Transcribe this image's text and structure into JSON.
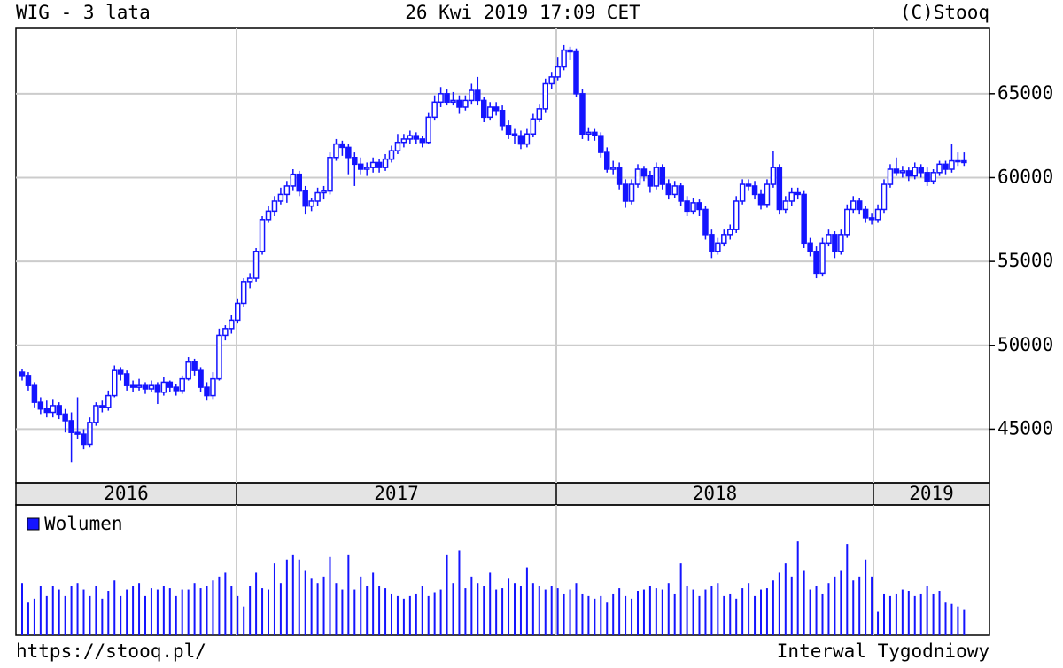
{
  "header": {
    "title": "WIG - 3 lata",
    "date": "26 Kwi 2019 17:09 CET",
    "copyright": "(C)Stooq"
  },
  "footer": {
    "url": "https://stooq.pl/",
    "interval": "Interwal Tygodniowy"
  },
  "chart_data": [
    {
      "type": "candlestick",
      "color": "#1414ff",
      "up_fill": "#ffffff",
      "grid": true,
      "x_labels": [
        "2016",
        "2017",
        "2018",
        "2019"
      ],
      "ylim": [
        41800,
        68900
      ],
      "yticks": [
        45000,
        50000,
        55000,
        60000,
        65000
      ],
      "candles": [
        [
          48400,
          48600,
          47900,
          48200
        ],
        [
          48200,
          48400,
          47300,
          47600
        ],
        [
          47600,
          47800,
          46300,
          46600
        ],
        [
          46600,
          46900,
          45900,
          46200
        ],
        [
          46200,
          46700,
          45700,
          46000
        ],
        [
          46000,
          46800,
          45700,
          46400
        ],
        [
          46400,
          46600,
          45600,
          45900
        ],
        [
          45900,
          46200,
          44800,
          45500
        ],
        [
          45500,
          46000,
          43000,
          44800
        ],
        [
          44800,
          46900,
          44400,
          44700
        ],
        [
          44700,
          45000,
          43800,
          44100
        ],
        [
          44100,
          45700,
          43900,
          45400
        ],
        [
          45400,
          46600,
          45200,
          46400
        ],
        [
          46400,
          46700,
          46000,
          46300
        ],
        [
          46300,
          47300,
          46100,
          47000
        ],
        [
          47000,
          48800,
          46900,
          48500
        ],
        [
          48500,
          48700,
          47900,
          48300
        ],
        [
          48300,
          48500,
          47300,
          47600
        ],
        [
          47600,
          47900,
          47200,
          47500
        ],
        [
          47500,
          48000,
          47300,
          47600
        ],
        [
          47600,
          47800,
          47100,
          47400
        ],
        [
          47400,
          47900,
          47200,
          47600
        ],
        [
          47600,
          47800,
          46500,
          47200
        ],
        [
          47200,
          48100,
          47000,
          47800
        ],
        [
          47800,
          47900,
          47200,
          47500
        ],
        [
          47500,
          47700,
          47000,
          47300
        ],
        [
          47300,
          48200,
          47100,
          48000
        ],
        [
          48000,
          49300,
          47900,
          49000
        ],
        [
          49000,
          49200,
          48200,
          48500
        ],
        [
          48500,
          48700,
          47200,
          47500
        ],
        [
          47500,
          47800,
          46700,
          47000
        ],
        [
          47000,
          48400,
          46800,
          48000
        ],
        [
          48000,
          51000,
          47900,
          50600
        ],
        [
          50600,
          51200,
          50300,
          51000
        ],
        [
          51000,
          51800,
          50700,
          51500
        ],
        [
          51500,
          52800,
          51300,
          52500
        ],
        [
          52500,
          54000,
          52300,
          53800
        ],
        [
          53800,
          54300,
          53400,
          54000
        ],
        [
          54000,
          55800,
          53800,
          55600
        ],
        [
          55600,
          57700,
          55400,
          57500
        ],
        [
          57500,
          58300,
          57300,
          58000
        ],
        [
          58000,
          58900,
          57700,
          58600
        ],
        [
          58600,
          59400,
          58400,
          59000
        ],
        [
          59000,
          59800,
          58500,
          59500
        ],
        [
          59500,
          60500,
          59200,
          60200
        ],
        [
          60200,
          60400,
          58900,
          59200
        ],
        [
          59200,
          59500,
          57800,
          58300
        ],
        [
          58300,
          58800,
          58000,
          58600
        ],
        [
          58600,
          59400,
          58300,
          59100
        ],
        [
          59100,
          59500,
          58700,
          59200
        ],
        [
          59200,
          61500,
          59000,
          61200
        ],
        [
          61200,
          62300,
          61000,
          62000
        ],
        [
          62000,
          62200,
          61300,
          61800
        ],
        [
          61800,
          62000,
          60200,
          61200
        ],
        [
          61200,
          61500,
          59500,
          60800
        ],
        [
          60800,
          61200,
          60200,
          60500
        ],
        [
          60500,
          60900,
          60100,
          60600
        ],
        [
          60600,
          61200,
          60300,
          60900
        ],
        [
          60900,
          61100,
          60300,
          60600
        ],
        [
          60600,
          61400,
          60400,
          61100
        ],
        [
          61100,
          61900,
          60900,
          61600
        ],
        [
          61600,
          62600,
          61400,
          62100
        ],
        [
          62100,
          62600,
          61800,
          62300
        ],
        [
          62300,
          62800,
          62000,
          62500
        ],
        [
          62500,
          62700,
          62000,
          62300
        ],
        [
          62300,
          62500,
          61800,
          62100
        ],
        [
          62100,
          63900,
          62000,
          63600
        ],
        [
          63600,
          64900,
          63400,
          64500
        ],
        [
          64500,
          65400,
          64200,
          65000
        ],
        [
          65000,
          65300,
          64300,
          64500
        ],
        [
          64500,
          65100,
          64300,
          64600
        ],
        [
          64600,
          64900,
          63800,
          64200
        ],
        [
          64200,
          64900,
          64000,
          64600
        ],
        [
          64600,
          65600,
          64400,
          65200
        ],
        [
          65200,
          66000,
          64300,
          64600
        ],
        [
          64600,
          64800,
          63300,
          63600
        ],
        [
          63600,
          64500,
          63400,
          64200
        ],
        [
          64200,
          64500,
          63700,
          64000
        ],
        [
          64000,
          64300,
          62800,
          63100
        ],
        [
          63100,
          63400,
          62300,
          62600
        ],
        [
          62600,
          62900,
          62000,
          62500
        ],
        [
          62500,
          62800,
          61700,
          62000
        ],
        [
          62000,
          62900,
          61800,
          62600
        ],
        [
          62600,
          63800,
          62400,
          63500
        ],
        [
          63500,
          64400,
          63300,
          64100
        ],
        [
          64100,
          65900,
          63900,
          65600
        ],
        [
          65600,
          66300,
          65300,
          66000
        ],
        [
          66000,
          67200,
          65800,
          66600
        ],
        [
          66600,
          67900,
          66400,
          67600
        ],
        [
          67600,
          67800,
          67000,
          67500
        ],
        [
          67500,
          67700,
          64800,
          65000
        ],
        [
          65000,
          65300,
          62300,
          62600
        ],
        [
          62600,
          63000,
          62200,
          62700
        ],
        [
          62700,
          62900,
          62200,
          62500
        ],
        [
          62500,
          62700,
          61200,
          61500
        ],
        [
          61500,
          61800,
          60300,
          60500
        ],
        [
          60500,
          61000,
          60200,
          60600
        ],
        [
          60600,
          60900,
          59300,
          59600
        ],
        [
          59600,
          59900,
          58200,
          58600
        ],
        [
          58600,
          59900,
          58400,
          59600
        ],
        [
          59600,
          60800,
          59400,
          60500
        ],
        [
          60500,
          60700,
          59800,
          60100
        ],
        [
          60100,
          60400,
          59100,
          59500
        ],
        [
          59500,
          60900,
          59300,
          60600
        ],
        [
          60600,
          60800,
          59300,
          59600
        ],
        [
          59600,
          59900,
          58700,
          59000
        ],
        [
          59000,
          59800,
          58800,
          59500
        ],
        [
          59500,
          59700,
          58300,
          58600
        ],
        [
          58600,
          58900,
          57700,
          58000
        ],
        [
          58000,
          58800,
          57800,
          58500
        ],
        [
          58500,
          58700,
          57700,
          58100
        ],
        [
          58100,
          58300,
          56300,
          56600
        ],
        [
          56600,
          56900,
          55200,
          55600
        ],
        [
          55600,
          56400,
          55400,
          56100
        ],
        [
          56100,
          56900,
          55900,
          56600
        ],
        [
          56600,
          57200,
          56300,
          56900
        ],
        [
          56900,
          58900,
          56700,
          58600
        ],
        [
          58600,
          59900,
          58400,
          59600
        ],
        [
          59600,
          59900,
          59200,
          59500
        ],
        [
          59500,
          59800,
          58700,
          59000
        ],
        [
          59000,
          59300,
          58100,
          58400
        ],
        [
          58400,
          59900,
          58200,
          59600
        ],
        [
          59600,
          61600,
          59400,
          60600
        ],
        [
          60600,
          60800,
          57800,
          58100
        ],
        [
          58100,
          58900,
          57900,
          58600
        ],
        [
          58600,
          59400,
          58300,
          59100
        ],
        [
          59100,
          59400,
          58700,
          59000
        ],
        [
          59000,
          59200,
          55800,
          56100
        ],
        [
          56100,
          56400,
          55300,
          55600
        ],
        [
          55600,
          55900,
          54000,
          54300
        ],
        [
          54300,
          56400,
          54100,
          56100
        ],
        [
          56100,
          56900,
          55900,
          56600
        ],
        [
          56600,
          56800,
          55200,
          55600
        ],
        [
          55600,
          56900,
          55400,
          56600
        ],
        [
          56600,
          58400,
          56400,
          58100
        ],
        [
          58100,
          58900,
          57900,
          58600
        ],
        [
          58600,
          58800,
          57800,
          58100
        ],
        [
          58100,
          58300,
          57300,
          57600
        ],
        [
          57600,
          57900,
          57200,
          57500
        ],
        [
          57500,
          58400,
          57300,
          58100
        ],
        [
          58100,
          59900,
          57900,
          59600
        ],
        [
          59600,
          60800,
          59400,
          60500
        ],
        [
          60500,
          61200,
          60100,
          60300
        ],
        [
          60300,
          60700,
          60000,
          60400
        ],
        [
          60400,
          60600,
          59800,
          60100
        ],
        [
          60100,
          60900,
          59900,
          60600
        ],
        [
          60600,
          60800,
          60000,
          60300
        ],
        [
          60300,
          60600,
          59500,
          59800
        ],
        [
          59800,
          60500,
          59600,
          60300
        ],
        [
          60300,
          61000,
          60100,
          60800
        ],
        [
          60800,
          61000,
          60200,
          60500
        ],
        [
          60500,
          62000,
          60300,
          61000
        ],
        [
          61000,
          61500,
          60700,
          61000
        ],
        [
          61000,
          61500,
          60700,
          60900
        ]
      ]
    },
    {
      "type": "bar",
      "color": "#1414ff",
      "ylim": [
        0,
        100
      ],
      "series": [
        {
          "name": "Wolumen",
          "color": "#1414ff",
          "values": [
            40,
            25,
            28,
            38,
            30,
            38,
            35,
            30,
            38,
            40,
            35,
            30,
            38,
            28,
            34,
            42,
            30,
            35,
            38,
            40,
            30,
            36,
            35,
            38,
            36,
            30,
            35,
            35,
            40,
            36,
            38,
            42,
            45,
            48,
            38,
            30,
            22,
            38,
            48,
            36,
            35,
            55,
            40,
            58,
            62,
            58,
            50,
            44,
            40,
            45,
            60,
            40,
            35,
            62,
            35,
            45,
            38,
            48,
            38,
            36,
            32,
            30,
            28,
            30,
            32,
            38,
            30,
            33,
            35,
            62,
            40,
            65,
            36,
            45,
            40,
            38,
            48,
            35,
            36,
            44,
            40,
            38,
            52,
            40,
            38,
            35,
            38,
            36,
            32,
            35,
            40,
            32,
            30,
            28,
            30,
            25,
            32,
            36,
            30,
            28,
            34,
            35,
            38,
            36,
            35,
            40,
            32,
            55,
            38,
            35,
            30,
            35,
            38,
            40,
            30,
            32,
            28,
            36,
            40,
            30,
            35,
            36,
            42,
            48,
            55,
            45,
            72,
            50,
            35,
            38,
            32,
            40,
            45,
            50,
            70,
            42,
            45,
            58,
            45,
            18,
            32,
            30,
            32,
            35,
            34,
            30,
            32,
            38,
            32,
            34,
            25,
            24,
            22,
            20
          ]
        }
      ]
    }
  ]
}
